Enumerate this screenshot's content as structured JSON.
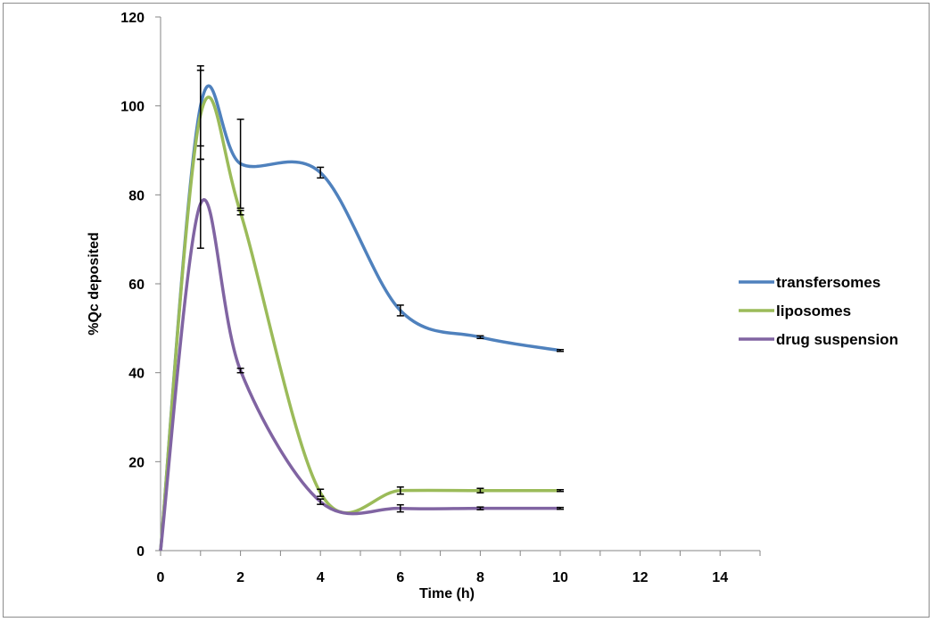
{
  "chart_data": {
    "type": "line",
    "title": "",
    "xlabel": "Time (h)",
    "ylabel": "%Qc deposited",
    "xlim": [
      0,
      15
    ],
    "ylim": [
      0,
      120
    ],
    "xticks": [
      0,
      2,
      4,
      6,
      8,
      10,
      12,
      14
    ],
    "yticks": [
      0,
      20,
      40,
      60,
      80,
      100,
      120
    ],
    "grid": false,
    "legend_position": "right",
    "series": [
      {
        "name": "transfersomes",
        "color": "#4f81bd",
        "points": [
          [
            0,
            0
          ],
          [
            1,
            100
          ],
          [
            2,
            87
          ],
          [
            4,
            85
          ],
          [
            6,
            54
          ],
          [
            8,
            48
          ],
          [
            10,
            45
          ]
        ],
        "errors": [
          0,
          9,
          10,
          1.2,
          1.2,
          0.3,
          0.2
        ]
      },
      {
        "name": "liposomes",
        "color": "#9bbb59",
        "points": [
          [
            0,
            0
          ],
          [
            1,
            98
          ],
          [
            2,
            76
          ],
          [
            4,
            13
          ],
          [
            6,
            13.5
          ],
          [
            8,
            13.5
          ],
          [
            10,
            13.5
          ]
        ],
        "errors": [
          0,
          10,
          0.5,
          0.8,
          0.8,
          0.5,
          0.2
        ]
      },
      {
        "name": "drug suspension",
        "color": "#8064a2",
        "points": [
          [
            0,
            0
          ],
          [
            1,
            78
          ],
          [
            2,
            40.5
          ],
          [
            4,
            11
          ],
          [
            6,
            9.5
          ],
          [
            8,
            9.5
          ],
          [
            10,
            9.5
          ]
        ],
        "errors": [
          0,
          10,
          0.5,
          0.6,
          0.8,
          0.3,
          0.2
        ]
      }
    ]
  }
}
